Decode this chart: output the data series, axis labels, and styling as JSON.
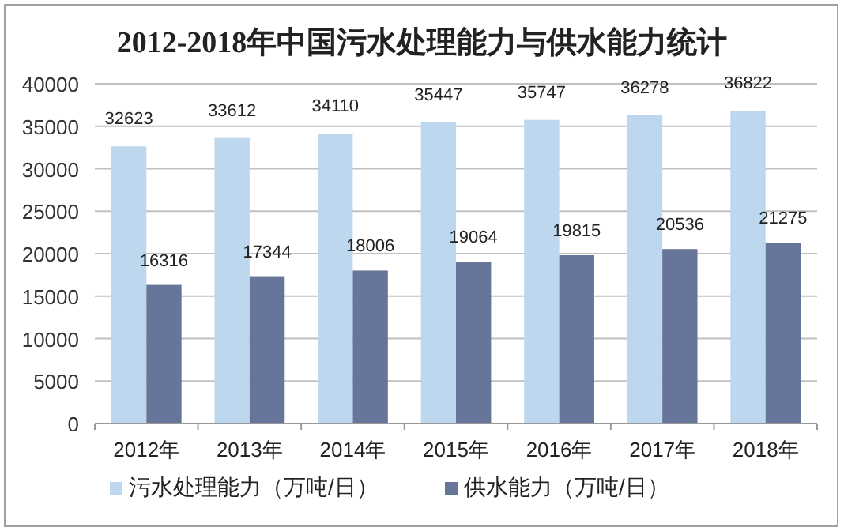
{
  "chart_data": {
    "type": "bar",
    "title": "2012-2018年中国污水处理能力与供水能力统计",
    "categories": [
      "2012年",
      "2013年",
      "2014年",
      "2015年",
      "2016年",
      "2017年",
      "2018年"
    ],
    "series": [
      {
        "name": "污水处理能力（万吨/日）",
        "color": "#bdd7ee",
        "values": [
          32623,
          33612,
          34110,
          35447,
          35747,
          36278,
          36822
        ]
      },
      {
        "name": "供水能力（万吨/日）",
        "color": "#68759b",
        "values": [
          16316,
          17344,
          18006,
          19064,
          19815,
          20536,
          21275
        ]
      }
    ],
    "ylim": [
      0,
      40000
    ],
    "yticks": [
      0,
      5000,
      10000,
      15000,
      20000,
      25000,
      30000,
      35000,
      40000
    ],
    "grid": "y",
    "legend": "bottom",
    "data_labels": true
  }
}
